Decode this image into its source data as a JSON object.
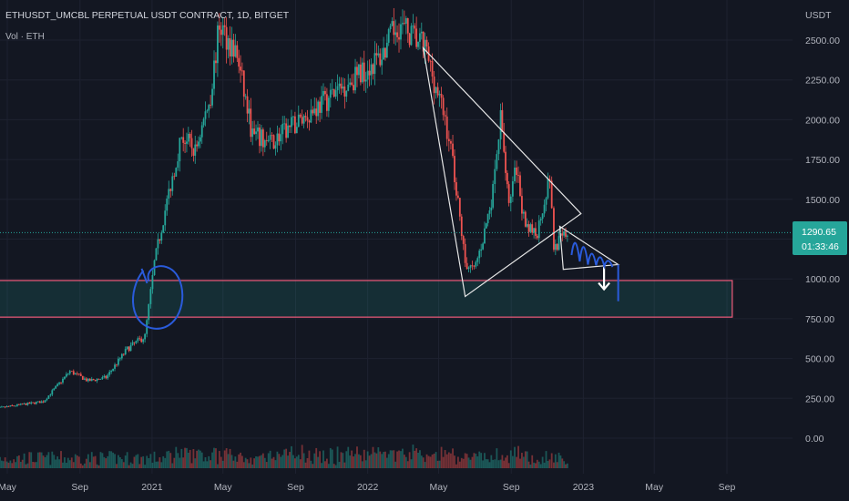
{
  "header": {
    "symbol_line": "ETHUSDT_UMCBL PERPETUAL USDT CONTRACT, 1D, BITGET",
    "volume_label": "Vol · ETH"
  },
  "chart_data": {
    "type": "line",
    "title": "ETHUSDT_UMCBL PERPETUAL USDT CONTRACT, 1D, BITGET",
    "y_axis_unit": "USDT",
    "yticks": [
      "2500.00",
      "2250.00",
      "2000.00",
      "1750.00",
      "1500.00",
      "1250.00",
      "1000.00",
      "750.00",
      "500.00",
      "250.00",
      "0.00"
    ],
    "ylim": [
      -20,
      2720
    ],
    "xticks": [
      {
        "label": "May",
        "date": "2020-05-01"
      },
      {
        "label": "Sep",
        "date": "2020-09-01"
      },
      {
        "label": "2021",
        "date": "2021-01-01"
      },
      {
        "label": "May",
        "date": "2021-05-01"
      },
      {
        "label": "Sep",
        "date": "2021-09-01"
      },
      {
        "label": "2022",
        "date": "2022-01-01"
      },
      {
        "label": "May",
        "date": "2022-05-01"
      },
      {
        "label": "Sep",
        "date": "2022-09-01"
      },
      {
        "label": "2023",
        "date": "2023-01-01"
      },
      {
        "label": "May",
        "date": "2023-05-01"
      },
      {
        "label": "Sep",
        "date": "2023-09-01"
      }
    ],
    "last_price": "1290.65",
    "countdown": "01:33:46",
    "last_price_value": 1290.65,
    "series": [
      {
        "values": [
          {
            "date": "2020-04-01",
            "close": 180
          },
          {
            "date": "2020-05-15",
            "close": 205
          },
          {
            "date": "2020-07-01",
            "close": 230
          },
          {
            "date": "2020-08-15",
            "close": 420
          },
          {
            "date": "2020-09-15",
            "close": 360
          },
          {
            "date": "2020-10-15",
            "close": 380
          },
          {
            "date": "2020-11-20",
            "close": 560
          },
          {
            "date": "2020-12-20",
            "close": 640
          },
          {
            "date": "2021-01-05",
            "close": 1100
          },
          {
            "date": "2021-01-20",
            "close": 1380
          },
          {
            "date": "2021-02-20",
            "close": 1900
          },
          {
            "date": "2021-03-15",
            "close": 1800
          },
          {
            "date": "2021-04-10",
            "close": 2150
          },
          {
            "date": "2021-04-25",
            "close": 2600
          },
          {
            "date": "2021-05-25",
            "close": 2400
          },
          {
            "date": "2021-06-20",
            "close": 1900
          },
          {
            "date": "2021-07-20",
            "close": 1850
          },
          {
            "date": "2022-01-25",
            "close": 2400
          },
          {
            "date": "2022-02-20",
            "close": 2600
          },
          {
            "date": "2022-03-10",
            "close": 2550
          },
          {
            "date": "2022-04-08",
            "close": 2450
          },
          {
            "date": "2022-05-12",
            "close": 2000
          },
          {
            "date": "2022-05-25",
            "close": 1750
          },
          {
            "date": "2022-06-15",
            "close": 1100
          },
          {
            "date": "2022-06-30",
            "close": 1050
          },
          {
            "date": "2022-07-15",
            "close": 1250
          },
          {
            "date": "2022-08-01",
            "close": 1550
          },
          {
            "date": "2022-08-14",
            "close": 2000
          },
          {
            "date": "2022-08-28",
            "close": 1500
          },
          {
            "date": "2022-09-10",
            "close": 1700
          },
          {
            "date": "2022-09-25",
            "close": 1300
          },
          {
            "date": "2022-10-15",
            "close": 1300
          },
          {
            "date": "2022-11-05",
            "close": 1650
          },
          {
            "date": "2022-11-12",
            "close": 1200
          },
          {
            "date": "2022-12-05",
            "close": 1290.65
          }
        ]
      }
    ],
    "support_zone": {
      "date_start": "2020-02-15",
      "date_end": "2023-09-10",
      "price_low": 760,
      "price_high": 990
    },
    "annotations": [
      {
        "type": "triangle",
        "points": [
          [
            "2022-04-05",
            2450
          ],
          [
            "2022-06-15",
            890
          ],
          [
            "2022-12-28",
            1410
          ]
        ]
      },
      {
        "type": "triangle",
        "points": [
          [
            "2022-11-22",
            1330
          ],
          [
            "2022-11-28",
            1060
          ],
          [
            "2023-03-01",
            1090
          ]
        ]
      },
      {
        "type": "arrow",
        "date": "2023-02-05",
        "price_from": 1075,
        "price_to": 935
      }
    ]
  }
}
